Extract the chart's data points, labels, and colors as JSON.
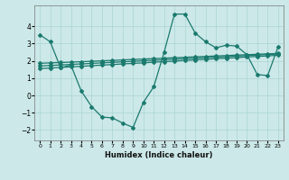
{
  "xlabel": "Humidex (Indice chaleur)",
  "bg_color": "#cce8e8",
  "line_color": "#1a7a6e",
  "grid_color": "#aad4d4",
  "xlim": [
    -0.5,
    23.5
  ],
  "ylim": [
    -2.6,
    5.2
  ],
  "yticks": [
    -2,
    -1,
    0,
    1,
    2,
    3,
    4
  ],
  "xticks": [
    0,
    1,
    2,
    3,
    4,
    5,
    6,
    7,
    8,
    9,
    10,
    11,
    12,
    13,
    14,
    15,
    16,
    17,
    18,
    19,
    20,
    21,
    22,
    23
  ],
  "line1_y": [
    3.5,
    3.1,
    1.6,
    1.75,
    0.25,
    -0.65,
    -1.25,
    -1.3,
    -1.6,
    -1.85,
    -0.4,
    0.5,
    2.5,
    4.7,
    4.7,
    3.6,
    3.1,
    2.75,
    2.9,
    2.85,
    2.35,
    1.2,
    1.15,
    2.8
  ],
  "line2_y": [
    1.85,
    1.88,
    1.9,
    1.92,
    1.95,
    1.97,
    2.0,
    2.02,
    2.05,
    2.08,
    2.1,
    2.13,
    2.15,
    2.18,
    2.2,
    2.23,
    2.25,
    2.28,
    2.3,
    2.33,
    2.35,
    2.38,
    2.4,
    2.43
  ],
  "line3_y": [
    1.7,
    1.73,
    1.76,
    1.79,
    1.82,
    1.85,
    1.88,
    1.91,
    1.94,
    1.97,
    2.0,
    2.03,
    2.06,
    2.09,
    2.12,
    2.15,
    2.18,
    2.21,
    2.24,
    2.27,
    2.3,
    2.33,
    2.36,
    2.39
  ],
  "line4_y": [
    1.55,
    1.58,
    1.62,
    1.65,
    1.68,
    1.72,
    1.75,
    1.78,
    1.82,
    1.85,
    1.88,
    1.92,
    1.95,
    1.98,
    2.02,
    2.05,
    2.08,
    2.12,
    2.15,
    2.18,
    2.22,
    2.25,
    2.28,
    2.32
  ]
}
